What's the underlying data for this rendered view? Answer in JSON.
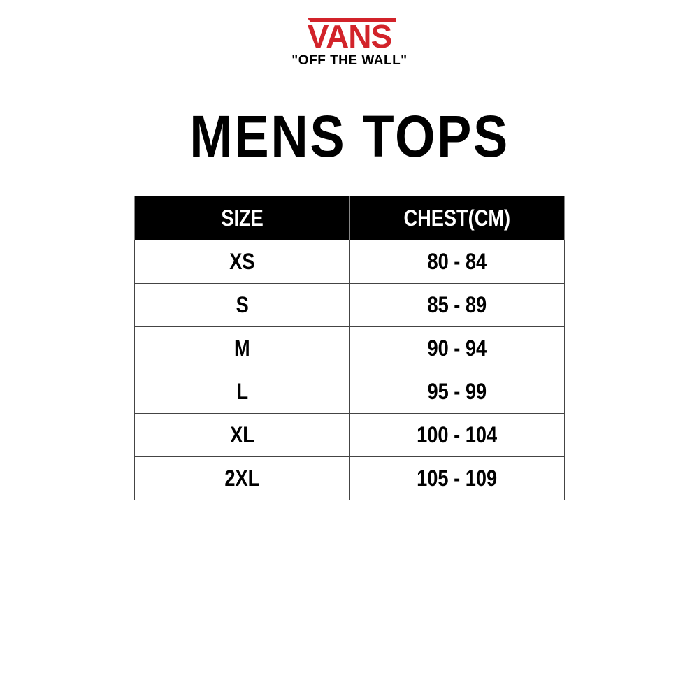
{
  "brand": {
    "logo_text": "VANS",
    "tagline": "\"OFF THE WALL\"",
    "logo_color": "#d2232a"
  },
  "title": "MENS TOPS",
  "table": {
    "headers": [
      "SIZE",
      "CHEST(CM)"
    ],
    "rows": [
      {
        "size": "XS",
        "chest": "80 - 84"
      },
      {
        "size": "S",
        "chest": "85 - 89"
      },
      {
        "size": "M",
        "chest": "90 - 94"
      },
      {
        "size": "L",
        "chest": "95 - 99"
      },
      {
        "size": "XL",
        "chest": "100 - 104"
      },
      {
        "size": "2XL",
        "chest": "105 - 109"
      }
    ]
  }
}
